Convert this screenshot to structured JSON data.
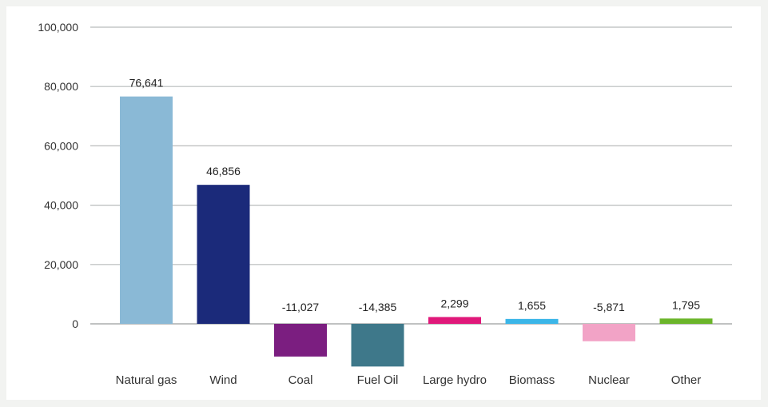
{
  "chart_data": {
    "type": "bar",
    "title": "",
    "xlabel": "",
    "ylabel": "",
    "ylim": [
      -15000,
      100000
    ],
    "yticks": [
      0,
      20000,
      40000,
      60000,
      80000,
      100000
    ],
    "ytick_labels": [
      "0",
      "20,000",
      "40,000",
      "60,000",
      "80,000",
      "100,000"
    ],
    "grid": true,
    "categories": [
      "Natural gas",
      "Wind",
      "Coal",
      "Fuel Oil",
      "Large hydro",
      "Biomass",
      "Nuclear",
      "Other"
    ],
    "values": [
      76641,
      46856,
      -11027,
      -14385,
      2299,
      1655,
      -5871,
      1795
    ],
    "data_labels": [
      "76,641",
      "46,856",
      "-11,027",
      "-14,385",
      "2,299",
      "1,655",
      "-5,871",
      "1,795"
    ],
    "colors": [
      "#8ab9d6",
      "#1b2a7a",
      "#7b1e80",
      "#3e788a",
      "#e0187a",
      "#3bb6e8",
      "#f2a3c6",
      "#6bb52a"
    ]
  }
}
